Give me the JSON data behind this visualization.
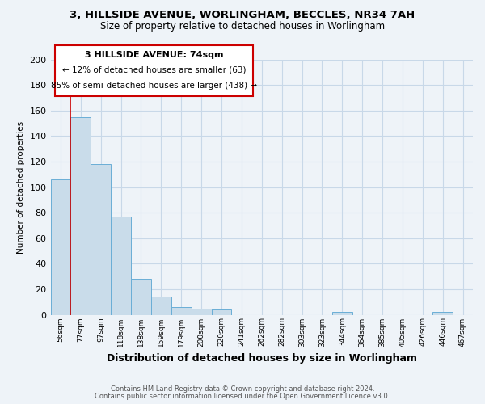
{
  "title_line1": "3, HILLSIDE AVENUE, WORLINGHAM, BECCLES, NR34 7AH",
  "title_line2": "Size of property relative to detached houses in Worlingham",
  "xlabel": "Distribution of detached houses by size in Worlingham",
  "ylabel": "Number of detached properties",
  "categories": [
    "56sqm",
    "77sqm",
    "97sqm",
    "118sqm",
    "138sqm",
    "159sqm",
    "179sqm",
    "200sqm",
    "220sqm",
    "241sqm",
    "262sqm",
    "282sqm",
    "303sqm",
    "323sqm",
    "344sqm",
    "364sqm",
    "385sqm",
    "405sqm",
    "426sqm",
    "446sqm",
    "467sqm"
  ],
  "values": [
    106,
    155,
    118,
    77,
    28,
    14,
    6,
    5,
    4,
    0,
    0,
    0,
    0,
    0,
    2,
    0,
    0,
    0,
    0,
    2,
    0
  ],
  "bar_color": "#c9dcea",
  "bar_edge_color": "#6aaed6",
  "ylim": [
    0,
    200
  ],
  "yticks": [
    0,
    20,
    40,
    60,
    80,
    100,
    120,
    140,
    160,
    180,
    200
  ],
  "annotation_text_line1": "3 HILLSIDE AVENUE: 74sqm",
  "annotation_text_line2": "← 12% of detached houses are smaller (63)",
  "annotation_text_line3": "85% of semi-detached houses are larger (438) →",
  "footer_line1": "Contains HM Land Registry data © Crown copyright and database right 2024.",
  "footer_line2": "Contains public sector information licensed under the Open Government Licence v3.0.",
  "background_color": "#eef3f8",
  "grid_color": "#c8d8e8",
  "red_line_color": "#cc0000",
  "ann_box_edge_color": "#cc0000"
}
